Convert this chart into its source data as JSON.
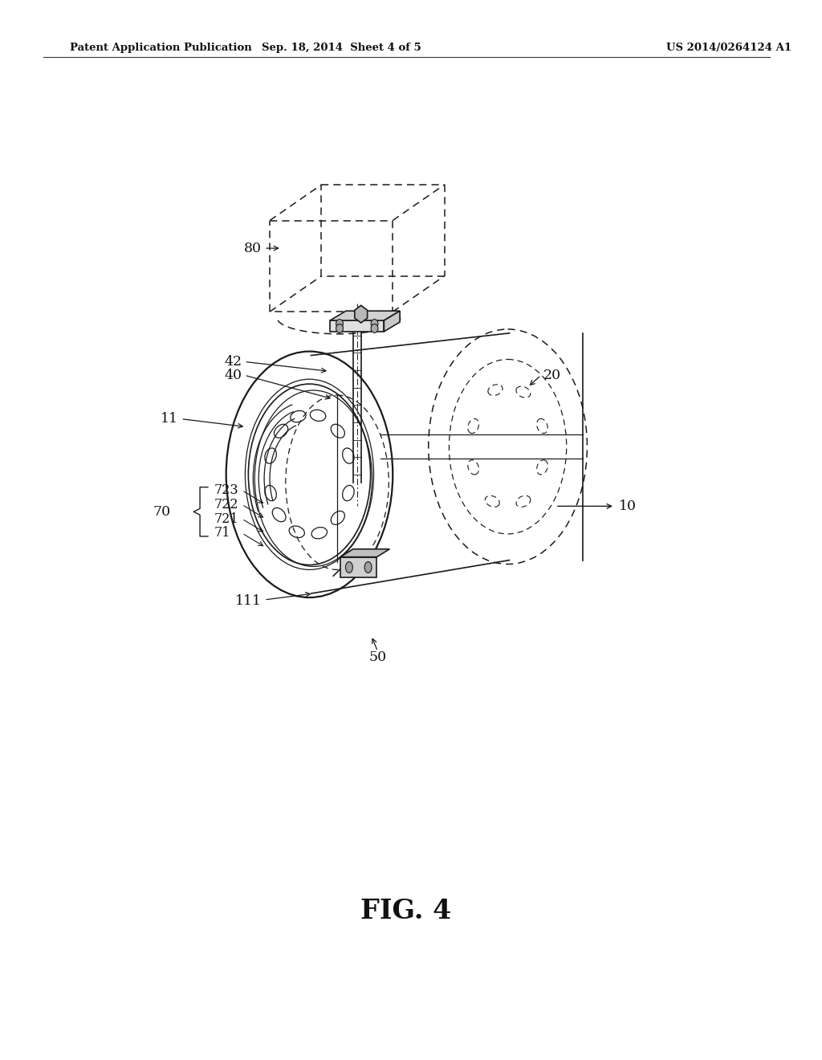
{
  "bg_color": "#ffffff",
  "header_left": "Patent Application Publication",
  "header_mid": "Sep. 18, 2014  Sheet 4 of 5",
  "header_right": "US 2014/0264124 A1",
  "fig_label": "FIG. 4",
  "line_color": "#1a1a1a",
  "dash_color": "#1a1a1a",
  "lw_thick": 1.6,
  "lw_main": 1.2,
  "lw_thin": 0.9,
  "lw_dash": 1.1
}
